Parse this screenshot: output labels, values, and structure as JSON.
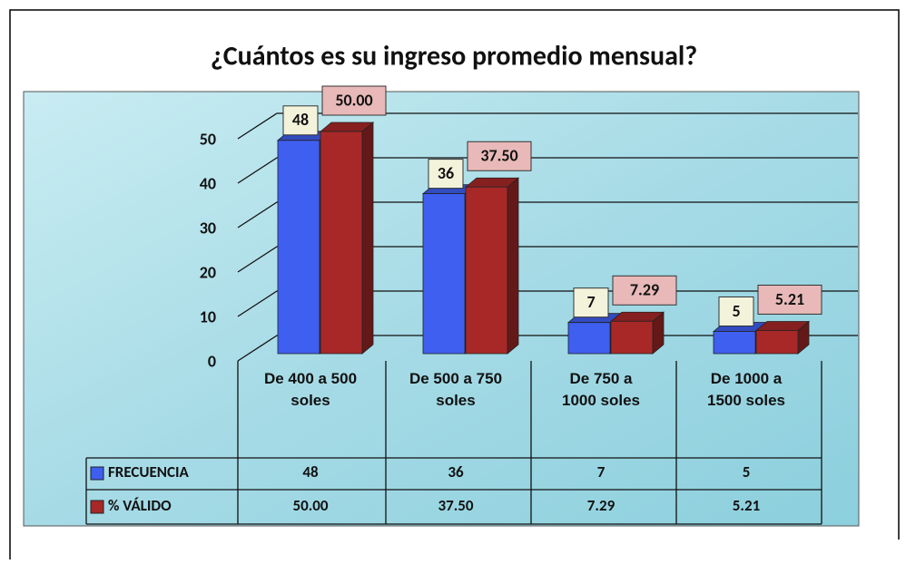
{
  "chart_data": {
    "type": "bar3d",
    "title": "¿Cuántos es su ingreso promedio mensual?",
    "categories": [
      "De 400 a 500 soles",
      "De 500 a 750 soles",
      "De 750 a 1000 soles",
      "De 1000 a 1500 soles"
    ],
    "series": [
      {
        "name": "FRECUENCIA",
        "color": "#3f5ff0",
        "values": [
          48,
          36,
          7,
          5
        ]
      },
      {
        "name": "% VÁLIDO",
        "color": "#a82828",
        "values": [
          50.0,
          37.5,
          7.29,
          5.21
        ],
        "value_labels": [
          "50.00",
          "37.50",
          "7.29",
          "5.21"
        ]
      }
    ],
    "ylim": [
      0,
      50
    ],
    "yticks": [
      0,
      10,
      20,
      30,
      40,
      50
    ],
    "grid": true,
    "data_table": true
  }
}
